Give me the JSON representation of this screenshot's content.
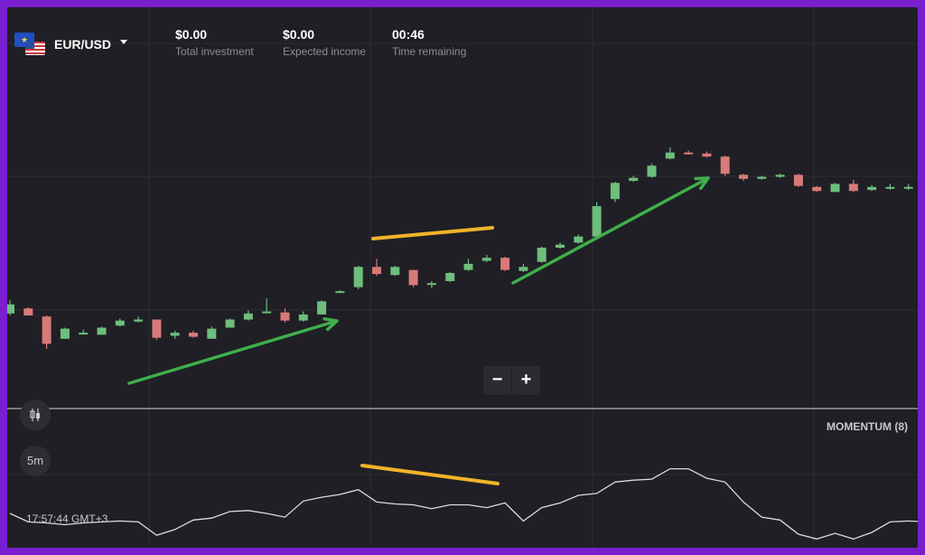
{
  "header": {
    "asset": "EUR/USD",
    "total_investment": {
      "value": "$0.00",
      "label": "Total investment"
    },
    "expected_income": {
      "value": "$0.00",
      "label": "Expected income"
    },
    "time_remaining": {
      "value": "00:46",
      "label": "Time remaining"
    }
  },
  "controls": {
    "zoom_out": "−",
    "zoom_in": "+",
    "timeframe": "5m",
    "chart_type_icon": "candlestick-icon"
  },
  "indicator": {
    "label": "MOMENTUM (8)"
  },
  "footer": {
    "time": "17:57:44 GMT+3"
  },
  "colors": {
    "bull": "#6ebe7c",
    "bear": "#d87a78",
    "arrow": "#3fae4b",
    "annotation": "#f2b329",
    "momentum": "#dcdcdc",
    "background": "#1f1f25",
    "frame": "#7a1fd0"
  },
  "chart_data": {
    "type": "candlestick",
    "series": [
      {
        "name": "EUR/USD",
        "candles": [
          [
            1.0,
            1.9,
            2.3,
            0.8
          ],
          [
            1.5,
            0.8,
            1.6,
            0.8
          ],
          [
            0.7,
            -2.0,
            0.8,
            -2.5
          ],
          [
            -1.5,
            -0.5,
            -0.4,
            -1.5
          ],
          [
            -0.9,
            -0.9,
            -0.6,
            -1.0
          ],
          [
            -1.1,
            -0.4,
            -0.3,
            -1.1
          ],
          [
            -0.2,
            0.3,
            0.5,
            -0.3
          ],
          [
            0.2,
            0.4,
            0.7,
            0.1
          ],
          [
            0.4,
            -1.4,
            0.4,
            -1.6
          ],
          [
            -1.2,
            -0.9,
            -0.7,
            -1.5
          ],
          [
            -0.9,
            -1.3,
            -0.7,
            -1.4
          ],
          [
            -1.5,
            -0.5,
            -0.3,
            -1.5
          ],
          [
            -0.4,
            0.4,
            0.5,
            -0.4
          ],
          [
            0.4,
            1.0,
            1.3,
            0.3
          ],
          [
            1.2,
            1.2,
            2.5,
            1.2
          ],
          [
            1.1,
            0.3,
            1.5,
            0.1
          ],
          [
            0.3,
            0.9,
            1.2,
            0.2
          ],
          [
            0.9,
            2.2,
            2.3,
            0.9
          ],
          [
            3.2,
            3.2,
            3.3,
            3.2
          ],
          [
            3.6,
            5.6,
            5.7,
            3.4
          ],
          [
            5.6,
            4.9,
            6.4,
            4.7
          ],
          [
            4.8,
            5.6,
            5.7,
            4.7
          ],
          [
            5.3,
            3.8,
            5.3,
            3.6
          ],
          [
            3.9,
            4.0,
            4.2,
            3.5
          ],
          [
            4.2,
            5.0,
            5.1,
            4.1
          ],
          [
            5.3,
            5.9,
            6.4,
            5.2
          ],
          [
            6.2,
            6.5,
            6.8,
            6.1
          ],
          [
            6.5,
            5.3,
            6.6,
            5.2
          ],
          [
            5.2,
            5.6,
            5.9,
            5.1
          ],
          [
            6.1,
            7.5,
            7.6,
            6.0
          ],
          [
            7.5,
            7.8,
            8.0,
            7.4
          ],
          [
            8.0,
            8.6,
            8.8,
            7.9
          ],
          [
            8.6,
            11.6,
            12.0,
            8.5
          ],
          [
            12.3,
            13.9,
            14.0,
            12.0
          ],
          [
            14.1,
            14.4,
            14.6,
            14.0
          ],
          [
            14.5,
            15.6,
            15.8,
            14.4
          ],
          [
            16.3,
            16.9,
            17.4,
            16.2
          ],
          [
            16.9,
            16.8,
            17.1,
            16.7
          ],
          [
            16.8,
            16.5,
            17.0,
            16.4
          ],
          [
            16.5,
            14.8,
            16.6,
            14.6
          ],
          [
            14.7,
            14.3,
            14.8,
            14.1
          ],
          [
            14.3,
            14.5,
            14.6,
            14.2
          ],
          [
            14.5,
            14.7,
            14.8,
            14.4
          ],
          [
            14.7,
            13.6,
            14.8,
            13.5
          ],
          [
            13.5,
            13.1,
            13.6,
            13.0
          ],
          [
            13.0,
            13.8,
            13.9,
            13.0
          ],
          [
            13.8,
            13.1,
            14.2,
            13.0
          ],
          [
            13.2,
            13.5,
            13.7,
            13.1
          ],
          [
            13.5,
            13.5,
            13.8,
            13.2
          ],
          [
            13.5,
            13.5,
            13.8,
            13.2
          ],
          [
            13.6,
            13.6,
            13.8,
            13.3
          ]
        ]
      },
      {
        "name": "MOMENTUM (8)",
        "values": [
          -1.9,
          -2.8,
          -2.9,
          -3.1,
          -2.9,
          -2.8,
          -2.7,
          -2.8,
          -4.2,
          -3.6,
          -2.6,
          -2.4,
          -1.7,
          -1.6,
          -1.9,
          -2.3,
          -0.6,
          -0.2,
          0.1,
          0.6,
          -0.7,
          -0.9,
          -1.0,
          -1.4,
          -1.0,
          -1.0,
          -1.3,
          -0.8,
          -2.7,
          -1.3,
          -0.8,
          0.0,
          0.2,
          1.4,
          1.6,
          1.7,
          2.8,
          2.8,
          1.8,
          1.4,
          -0.7,
          -2.3,
          -2.6,
          -4.1,
          -4.6,
          -4.0,
          -4.6,
          -3.9,
          -2.8,
          -2.7,
          -2.8
        ]
      }
    ]
  }
}
